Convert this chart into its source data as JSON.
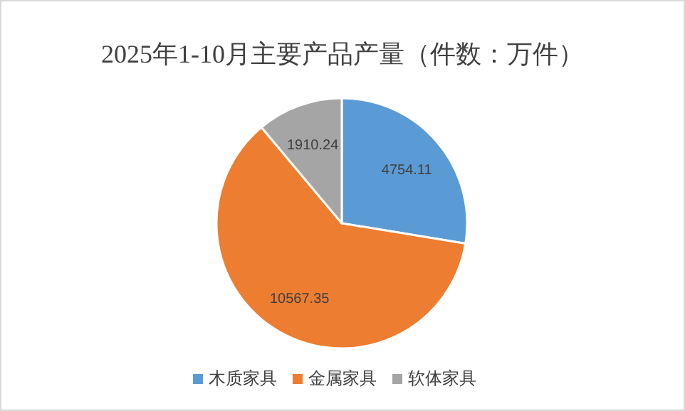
{
  "chart_data": {
    "type": "pie",
    "title": "2025年1-10月主要产品产量（件数：万件）",
    "categories": [
      "木质家具",
      "金属家具",
      "软体家具"
    ],
    "values": [
      4754.11,
      10567.35,
      1910.24
    ],
    "colors": [
      "#5b9bd5",
      "#ed7d31",
      "#a5a5a5"
    ],
    "data_labels": true,
    "legend": "bottom"
  }
}
